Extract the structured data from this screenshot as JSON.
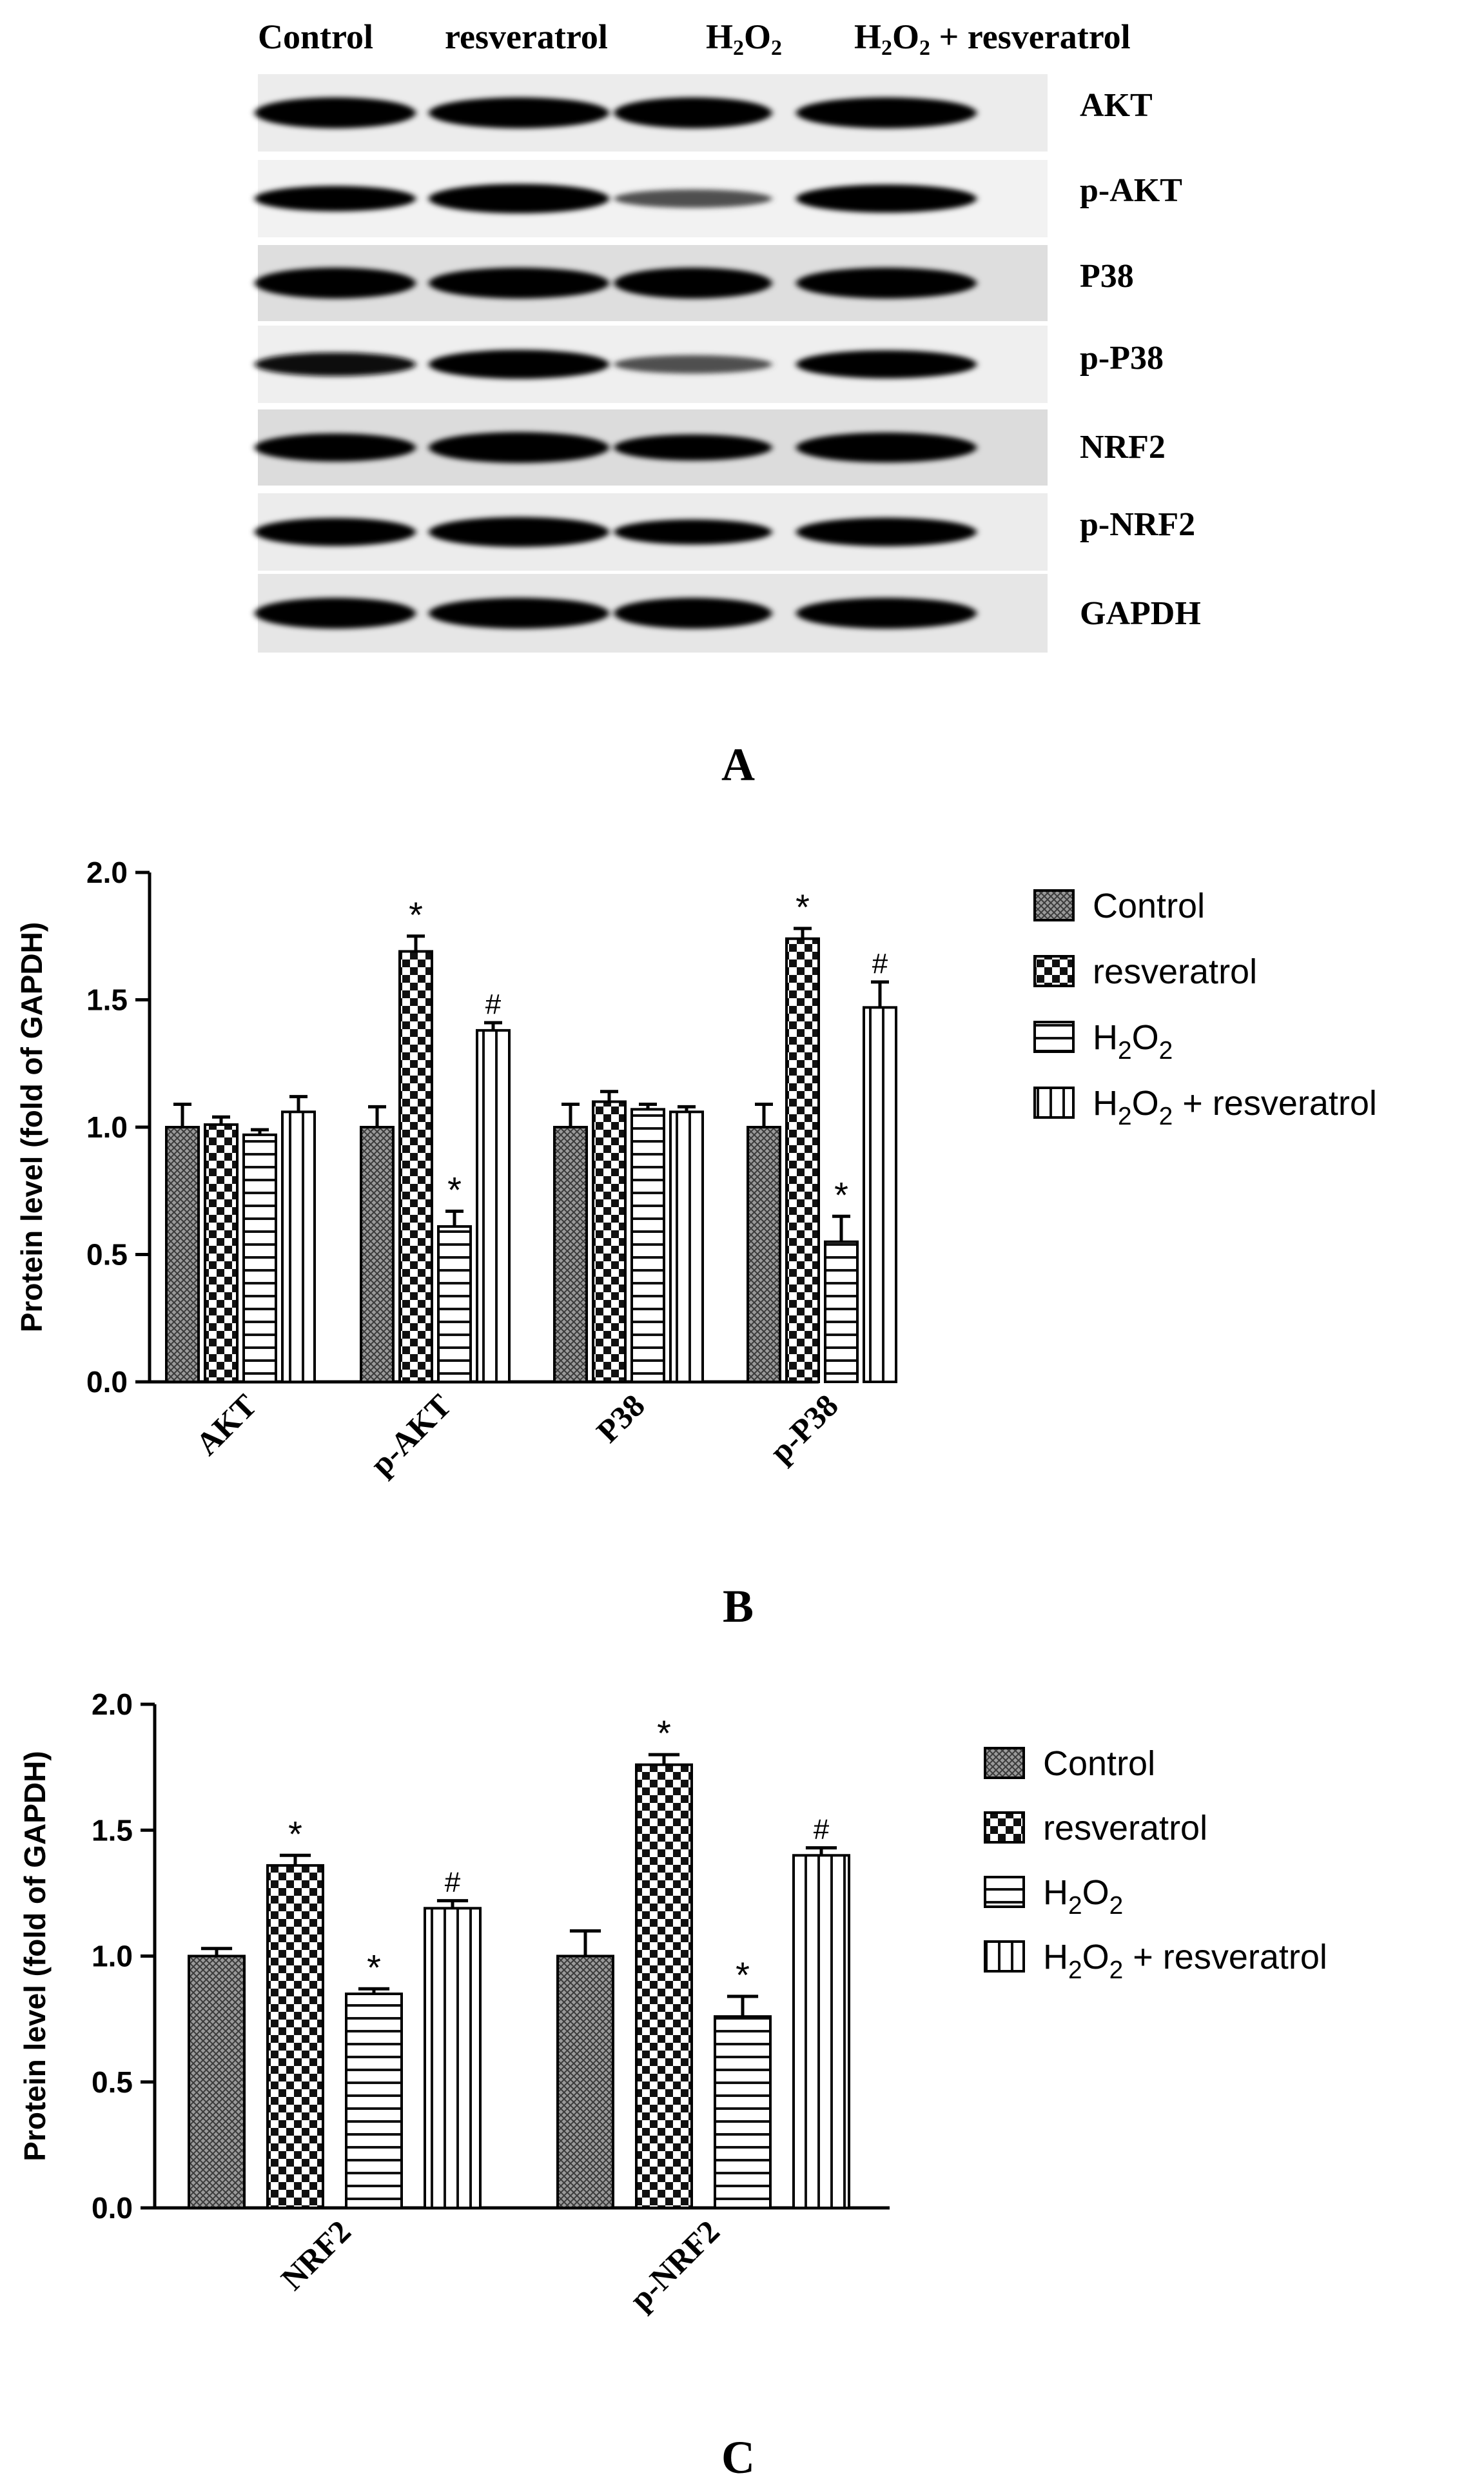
{
  "blot": {
    "lane_labels": [
      {
        "pre": "Control"
      },
      {
        "pre": "resveratrol"
      },
      {
        "pre": "H",
        "sub1": "2",
        "mid": "O",
        "sub2": "2"
      },
      {
        "pre": "H",
        "sub1": "2",
        "mid": "O",
        "sub2": "2",
        "post": " + resveratrol"
      }
    ],
    "band_labels": [
      "AKT",
      "p-AKT",
      "P38",
      "p-P38",
      "NRF2",
      "p-NRF2",
      "GAPDH"
    ],
    "band_intensity": [
      [
        1.0,
        1.0,
        1.0,
        1.0
      ],
      [
        0.72,
        0.92,
        0.35,
        0.85
      ],
      [
        1.0,
        1.0,
        1.0,
        1.0
      ],
      [
        0.62,
        0.9,
        0.35,
        0.85
      ],
      [
        0.85,
        1.0,
        0.75,
        0.95
      ],
      [
        0.85,
        0.95,
        0.7,
        0.88
      ],
      [
        1.0,
        1.0,
        1.0,
        1.0
      ]
    ],
    "panel_label": "A"
  },
  "legend": [
    {
      "name": "Control",
      "pattern": "dense-crosshatch"
    },
    {
      "name": "resveratrol",
      "pattern": "checkerboard"
    },
    {
      "name": "H2O2",
      "pattern": "horizontal-lines"
    },
    {
      "name": "H2O2 + resveratrol",
      "pattern": "vertical-lines"
    }
  ],
  "chart_data": [
    {
      "type": "bar",
      "panel_label": "B",
      "ylabel": "Protein level (fold of GAPDH)",
      "ylim": [
        0,
        2.0
      ],
      "yticks": [
        "0.0",
        "0.5",
        "1.0",
        "1.5",
        "2.0"
      ],
      "categories": [
        "AKT",
        "p-AKT",
        "P38",
        "p-P38"
      ],
      "series": [
        {
          "name": "Control",
          "values": [
            1.0,
            1.0,
            1.0,
            1.0
          ],
          "errors": [
            0.09,
            0.08,
            0.09,
            0.09
          ],
          "marks": [
            "",
            "",
            "",
            ""
          ]
        },
        {
          "name": "resveratrol",
          "values": [
            1.01,
            1.69,
            1.1,
            1.74
          ],
          "errors": [
            0.03,
            0.06,
            0.04,
            0.04
          ],
          "marks": [
            "",
            "*",
            "",
            "*"
          ]
        },
        {
          "name": "H2O2",
          "values": [
            0.97,
            0.61,
            1.07,
            0.55
          ],
          "errors": [
            0.02,
            0.06,
            0.02,
            0.1
          ],
          "marks": [
            "",
            "*",
            "",
            "*"
          ]
        },
        {
          "name": "H2O2 + resveratrol",
          "values": [
            1.06,
            1.38,
            1.06,
            1.47
          ],
          "errors": [
            0.06,
            0.03,
            0.02,
            0.1
          ],
          "marks": [
            "",
            "#",
            "",
            "#"
          ]
        }
      ],
      "grid": false,
      "legend": "right"
    },
    {
      "type": "bar",
      "panel_label": "C",
      "ylabel": "Protein level (fold of GAPDH)",
      "ylim": [
        0,
        2.0
      ],
      "yticks": [
        "0.0",
        "0.5",
        "1.0",
        "1.5",
        "2.0"
      ],
      "categories": [
        "NRF2",
        "p-NRF2"
      ],
      "series": [
        {
          "name": "Control",
          "values": [
            1.0,
            1.0
          ],
          "errors": [
            0.03,
            0.1
          ],
          "marks": [
            "",
            ""
          ]
        },
        {
          "name": "resveratrol",
          "values": [
            1.36,
            1.76
          ],
          "errors": [
            0.04,
            0.04
          ],
          "marks": [
            "*",
            "*"
          ]
        },
        {
          "name": "H2O2",
          "values": [
            0.85,
            0.76
          ],
          "errors": [
            0.02,
            0.08
          ],
          "marks": [
            "*",
            "*"
          ]
        },
        {
          "name": "H2O2 + resveratrol",
          "values": [
            1.19,
            1.4
          ],
          "errors": [
            0.03,
            0.03
          ],
          "marks": [
            "#",
            "#"
          ]
        }
      ],
      "grid": false,
      "legend": "right"
    }
  ]
}
